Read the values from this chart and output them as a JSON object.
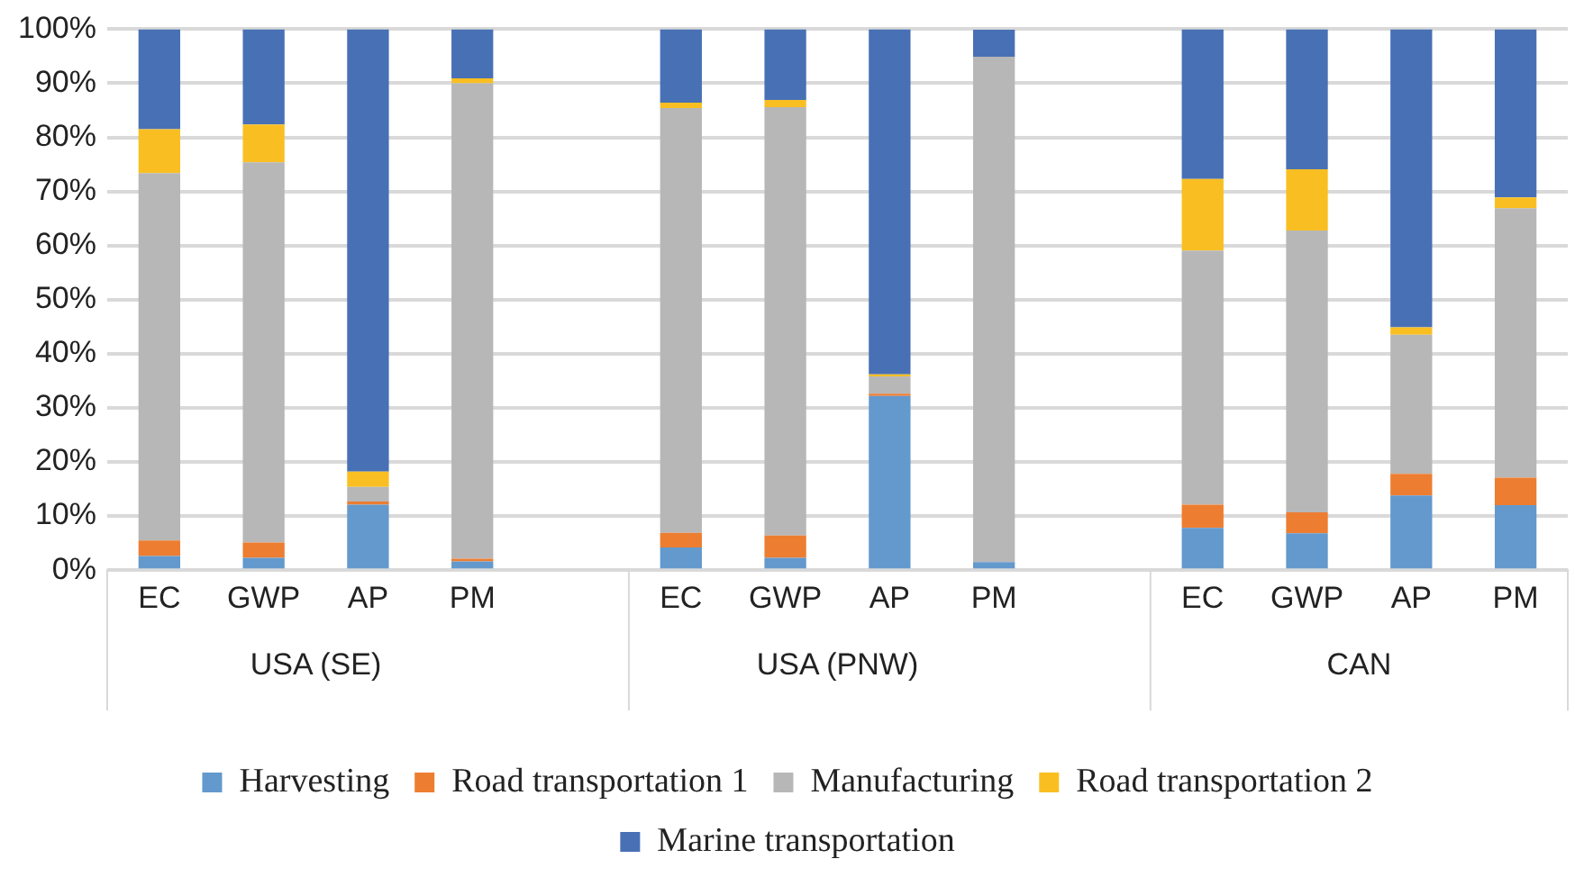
{
  "chart_data": {
    "type": "bar",
    "stacked": true,
    "categories": [
      "EC",
      "GWP",
      "AP",
      "PM",
      null,
      "EC",
      "GWP",
      "AP",
      "PM",
      null,
      "EC",
      "GWP",
      "AP",
      "PM"
    ],
    "annotations": [
      "USA (SE)",
      "USA (PNW)",
      "CAN"
    ],
    "series": [
      {
        "name": "Harvesting",
        "color": "#6399cd",
        "values": [
          2.6,
          2.3,
          12.1,
          1.6,
          null,
          4.2,
          2.3,
          32.2,
          1.5,
          null,
          7.8,
          6.8,
          13.8,
          12.0
        ]
      },
      {
        "name": "Road transportation 1",
        "color": "#ed7d31",
        "values": [
          2.9,
          2.8,
          0.6,
          0.5,
          null,
          2.7,
          4.1,
          0.4,
          null,
          null,
          4.3,
          3.9,
          4.0,
          5.1
        ]
      },
      {
        "name": "Manufacturing",
        "color": "#b7b7b7",
        "values": [
          67.9,
          70.3,
          2.7,
          87.9,
          null,
          78.5,
          79.2,
          3.2,
          93.4,
          null,
          47.0,
          52.1,
          25.7,
          49.8
        ]
      },
      {
        "name": "Road transportation 2",
        "color": "#f9bf22",
        "values": [
          8.1,
          7.0,
          2.8,
          0.9,
          null,
          1.0,
          1.3,
          0.4,
          0,
          null,
          13.2,
          11.3,
          1.4,
          2.0
        ]
      },
      {
        "name": "Marine transportation",
        "color": "#4870b5",
        "values": [
          18.5,
          17.6,
          81.8,
          9.1,
          null,
          13.6,
          13.1,
          63.8,
          5.0,
          null,
          27.7,
          25.9,
          55.1,
          31.1
        ]
      }
    ],
    "ylim": [
      0,
      100
    ],
    "yticks": [
      {
        "value": 0,
        "label": "0%"
      },
      {
        "value": 10,
        "label": "10%"
      },
      {
        "value": 20,
        "label": "20%"
      },
      {
        "value": 30,
        "label": "30%"
      },
      {
        "value": 40,
        "label": "40%"
      },
      {
        "value": 50,
        "label": "50%"
      },
      {
        "value": 60,
        "label": "60%"
      },
      {
        "value": 70,
        "label": "70%"
      },
      {
        "value": 80,
        "label": "80%"
      },
      {
        "value": 90,
        "label": "90%"
      },
      {
        "value": 100,
        "label": "100%"
      }
    ],
    "grid": "y",
    "legend": "bottom"
  }
}
